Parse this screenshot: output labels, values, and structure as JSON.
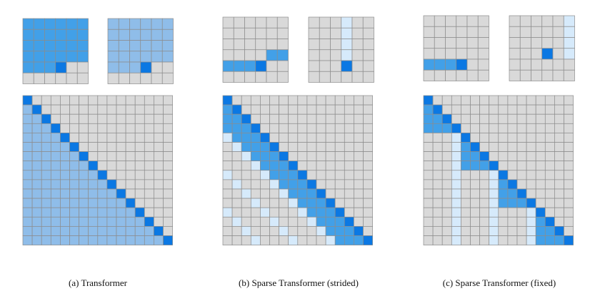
{
  "colors": {
    "cell_empty": "#d9d9d9",
    "cell_attended": "#8fbde9",
    "cell_active": "#42a0e8",
    "cell_query": "#0b78e3",
    "cell_light": "#d6eafb",
    "grid_line": "#8c8c8c"
  },
  "panels": [
    {
      "id": "transformer",
      "caption": "(a)  Transformer",
      "pattern": "full"
    },
    {
      "id": "sparse-strided",
      "caption": "(b)  Sparse Transformer (strided)",
      "pattern": "strided"
    },
    {
      "id": "sparse-fixed",
      "caption": "(c)  Sparse Transformer (fixed)",
      "pattern": "fixed"
    }
  ]
}
